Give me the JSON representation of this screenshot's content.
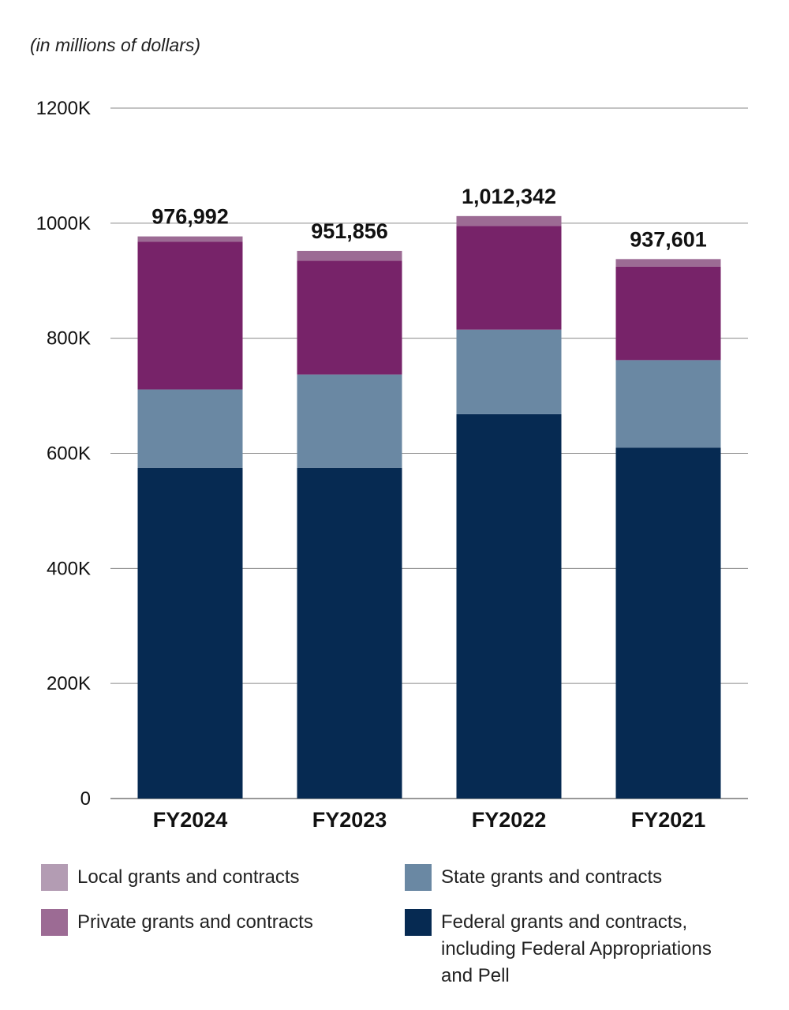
{
  "chart_data": {
    "type": "bar",
    "stacked": true,
    "unit_note": "(in millions of dollars)",
    "categories": [
      "FY2024",
      "FY2023",
      "FY2022",
      "FY2021"
    ],
    "totals": [
      976992,
      951856,
      1012342,
      937601
    ],
    "total_labels": [
      "976,992",
      "951,856",
      "1,012,342",
      "937,601"
    ],
    "series": [
      {
        "name": "Federal grants and contracts, including Federal Appropriations and Pell",
        "color": "#062a52",
        "values": [
          575000,
          575000,
          668000,
          610000
        ]
      },
      {
        "name": "State grants and contracts",
        "color": "#6a88a3",
        "values": [
          136000,
          162000,
          147000,
          152000
        ]
      },
      {
        "name": "Private grants and contracts",
        "color": "#772369",
        "values": [
          256992,
          197856,
          180342,
          162601
        ]
      },
      {
        "name": "Local grants and contracts",
        "color": "#9c6b94",
        "values": [
          9000,
          17000,
          17000,
          13000
        ]
      }
    ],
    "ylim": [
      0,
      1200000
    ],
    "yticks": [
      0,
      200000,
      400000,
      600000,
      800000,
      1000000,
      1200000
    ],
    "ytick_labels": [
      "0",
      "200K",
      "400K",
      "600K",
      "800K",
      "1000K",
      "1200K"
    ],
    "grid": true,
    "legend_position": "bottom"
  },
  "legend": [
    {
      "label": "Local grants and contracts",
      "color": "#b39cb3"
    },
    {
      "label": "State grants and contracts",
      "color": "#6a88a3"
    },
    {
      "label": "Private grants and contracts",
      "color": "#9c6b94"
    },
    {
      "label_lines": [
        "Federal grants and contracts,",
        "including Federal Appropriations",
        "and Pell"
      ],
      "color": "#062a52"
    }
  ]
}
